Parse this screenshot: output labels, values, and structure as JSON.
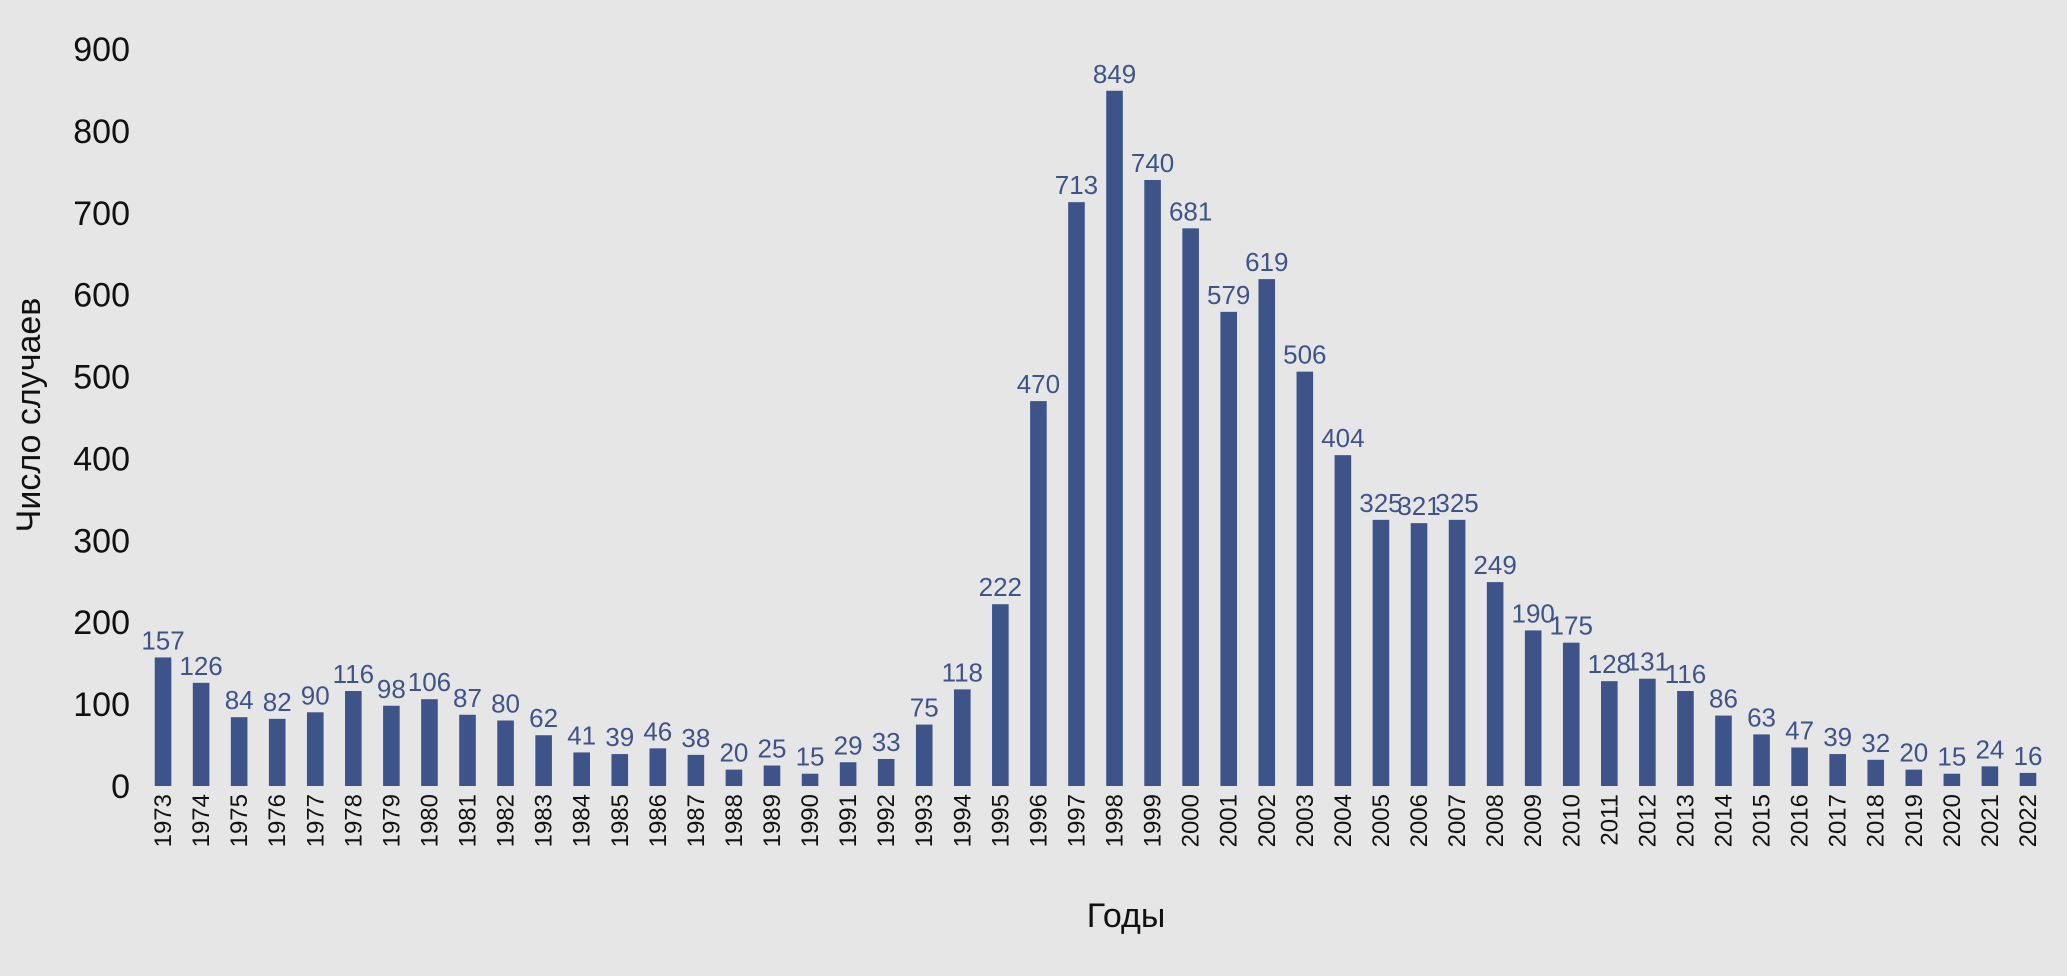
{
  "chart_data": {
    "type": "bar",
    "title": "",
    "xlabel": "Годы",
    "ylabel": "Число случаев",
    "ylim": [
      0,
      900
    ],
    "yticks": [
      0,
      100,
      200,
      300,
      400,
      500,
      600,
      700,
      800,
      900
    ],
    "grid": false,
    "legend": "none",
    "bar_color": "#3e5489",
    "label_color": "#3e5489",
    "categories": [
      "1973",
      "1974",
      "1975",
      "1976",
      "1977",
      "1978",
      "1979",
      "1980",
      "1981",
      "1982",
      "1983",
      "1984",
      "1985",
      "1986",
      "1987",
      "1988",
      "1989",
      "1990",
      "1991",
      "1992",
      "1993",
      "1994",
      "1995",
      "1996",
      "1997",
      "1998",
      "1999",
      "2000",
      "2001",
      "2002",
      "2003",
      "2004",
      "2005",
      "2006",
      "2007",
      "2008",
      "2009",
      "2010",
      "2011",
      "2012",
      "2013",
      "2014",
      "2015",
      "2016",
      "2017",
      "2018",
      "2019",
      "2020",
      "2021",
      "2022"
    ],
    "values": [
      157,
      126,
      84,
      82,
      90,
      116,
      98,
      106,
      87,
      80,
      62,
      41,
      39,
      46,
      38,
      20,
      25,
      15,
      29,
      33,
      75,
      118,
      222,
      470,
      713,
      849,
      740,
      681,
      579,
      619,
      506,
      404,
      325,
      321,
      325,
      249,
      190,
      175,
      128,
      131,
      116,
      86,
      63,
      47,
      39,
      32,
      20,
      15,
      24,
      16
    ]
  }
}
